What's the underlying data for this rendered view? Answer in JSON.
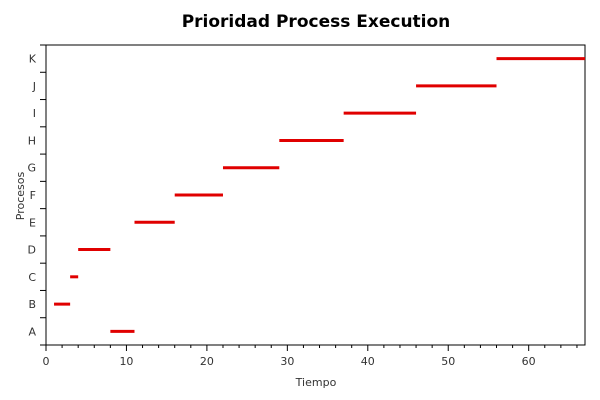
{
  "chart_data": {
    "type": "gantt",
    "title": "Prioridad Process Execution",
    "xlabel": "Tiempo",
    "ylabel": "Procesos",
    "xlim": [
      0,
      67
    ],
    "x_ticks": [
      0,
      10,
      20,
      30,
      40,
      50,
      60
    ],
    "categories": [
      "A",
      "B",
      "C",
      "D",
      "E",
      "F",
      "G",
      "H",
      "I",
      "J",
      "K"
    ],
    "bars": [
      {
        "process": "A",
        "start": 8,
        "end": 11
      },
      {
        "process": "B",
        "start": 1,
        "end": 3
      },
      {
        "process": "C",
        "start": 3,
        "end": 4
      },
      {
        "process": "D",
        "start": 4,
        "end": 8
      },
      {
        "process": "E",
        "start": 11,
        "end": 16
      },
      {
        "process": "F",
        "start": 16,
        "end": 22
      },
      {
        "process": "G",
        "start": 22,
        "end": 29
      },
      {
        "process": "H",
        "start": 29,
        "end": 37
      },
      {
        "process": "I",
        "start": 37,
        "end": 46
      },
      {
        "process": "J",
        "start": 46,
        "end": 56
      },
      {
        "process": "K",
        "start": 56,
        "end": 67
      }
    ],
    "bar_color": "#e00000",
    "grid": false
  }
}
